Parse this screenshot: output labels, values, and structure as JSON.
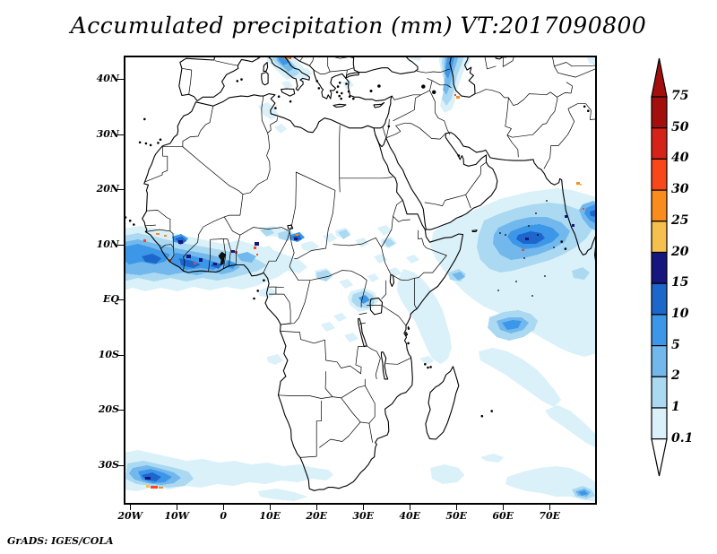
{
  "title": "Accumulated precipitation (mm) VT:2017090800",
  "footer": "GrADS: IGES/COLA",
  "axes": {
    "lat_ticks": [
      "40N",
      "30N",
      "20N",
      "10N",
      "EQ",
      "10S",
      "20S",
      "30S"
    ],
    "lat_values": [
      40,
      30,
      20,
      10,
      0,
      -10,
      -20,
      -30
    ],
    "lon_ticks": [
      "20W",
      "10W",
      "0",
      "10E",
      "20E",
      "30E",
      "40E",
      "50E",
      "60E",
      "70E"
    ],
    "lon_values": [
      -20,
      -10,
      0,
      10,
      20,
      30,
      40,
      50,
      60,
      70
    ]
  },
  "colorbar": {
    "labels": [
      "75",
      "50",
      "40",
      "30",
      "25",
      "20",
      "15",
      "10",
      "5",
      "2",
      "1",
      "0.1"
    ],
    "segment_colors_top_to_bottom": [
      "#A30F0D",
      "#D6231A",
      "#F8481A",
      "#FA8C1E",
      "#F6C04E",
      "#16167E",
      "#1D66CC",
      "#3D97E8",
      "#72B8EC",
      "#ABD9F1",
      "#DAF1F9"
    ],
    "arrow_top_color": "#A30F0D",
    "arrow_bottom_color": "#FFFFFF"
  },
  "chart_data": {
    "type": "heatmap",
    "title": "Accumulated precipitation (mm) VT:2017090800",
    "variable": "accumulated precipitation",
    "units": "mm",
    "valid_time": "2017090800",
    "projection": "lat-lon map, Africa / Indian Ocean sector",
    "lon_range_deg": [
      -21.4,
      80.2
    ],
    "lat_range_deg": [
      -37.2,
      44.2
    ],
    "lon_tick_labels": [
      "20W",
      "10W",
      "0",
      "10E",
      "20E",
      "30E",
      "40E",
      "50E",
      "60E",
      "70E"
    ],
    "lat_tick_labels": [
      "40N",
      "30N",
      "20N",
      "10N",
      "EQ",
      "10S",
      "20S",
      "30S"
    ],
    "shade_levels_mm": [
      0.1,
      1,
      2,
      5,
      10,
      15,
      20,
      25,
      30,
      40,
      50,
      75
    ],
    "palette_low_to_high": [
      "#DAF1F9",
      "#ABD9F1",
      "#72B8EC",
      "#3D97E8",
      "#1D66CC",
      "#16167E",
      "#F6C04E",
      "#FA8C1E",
      "#F8481A",
      "#D6231A",
      "#A30F0D"
    ],
    "grid": false,
    "legend_position": "right vertical color bar with end arrows",
    "regions": [
      {
        "area": "Gulf of Guinea / West African coast band",
        "extent": "3N-11N, 21W-12E",
        "typical_mm": "2-15",
        "peaks_mm": "isolated 30-75 specks near Guinea, Liberia, Ivory Coast, Ghana, SE Nigeria"
      },
      {
        "area": "Italy / Adriatic (top edge)",
        "extent": "43N-44N, 8E-17E",
        "typical_mm": "1-10",
        "peaks_mm": "25-40 spot at north Adriatic"
      },
      {
        "area": "Caspian Sea west coast (top right)",
        "extent": "36N-44N, 47E-54E",
        "typical_mm": "1-10",
        "peaks_mm": "25-40 spot on SW shore"
      },
      {
        "area": "Arabian Sea west of India",
        "extent": "5N-20N, 55E-75E",
        "typical_mm": "1-10",
        "peaks_mm": "10-15 cores; tiny 25-40 specks near Indian coast"
      },
      {
        "area": "Equatorial Indian Ocean blob",
        "extent": "2S-8S, 55E-65E",
        "typical_mm": "1-5",
        "peaks_mm": "5-10 core"
      },
      {
        "area": "Scattered equatorial Africa (S Sudan, Ethiopia, CAR, Congo, Lake Victoria)",
        "typical_mm": "0.1-2",
        "peaks_mm": "2-10 spots"
      },
      {
        "area": "East African coastal waters",
        "extent": "4S-18S along coast",
        "typical_mm": "0.1-1"
      },
      {
        "area": "South Atlantic storm (bottom left)",
        "extent": "32S-36S, 20W-5W",
        "typical_mm": "1-10",
        "peaks_mm": "30-75 streak in core"
      },
      {
        "area": "SW Indian Ocean frontal streaks",
        "extent": "10S-33S, 45E-80E",
        "typical_mm": "0.1-1",
        "peaks_mm": "2-5 spot at bottom right corner"
      }
    ],
    "source": "GrADS: IGES/COLA"
  }
}
